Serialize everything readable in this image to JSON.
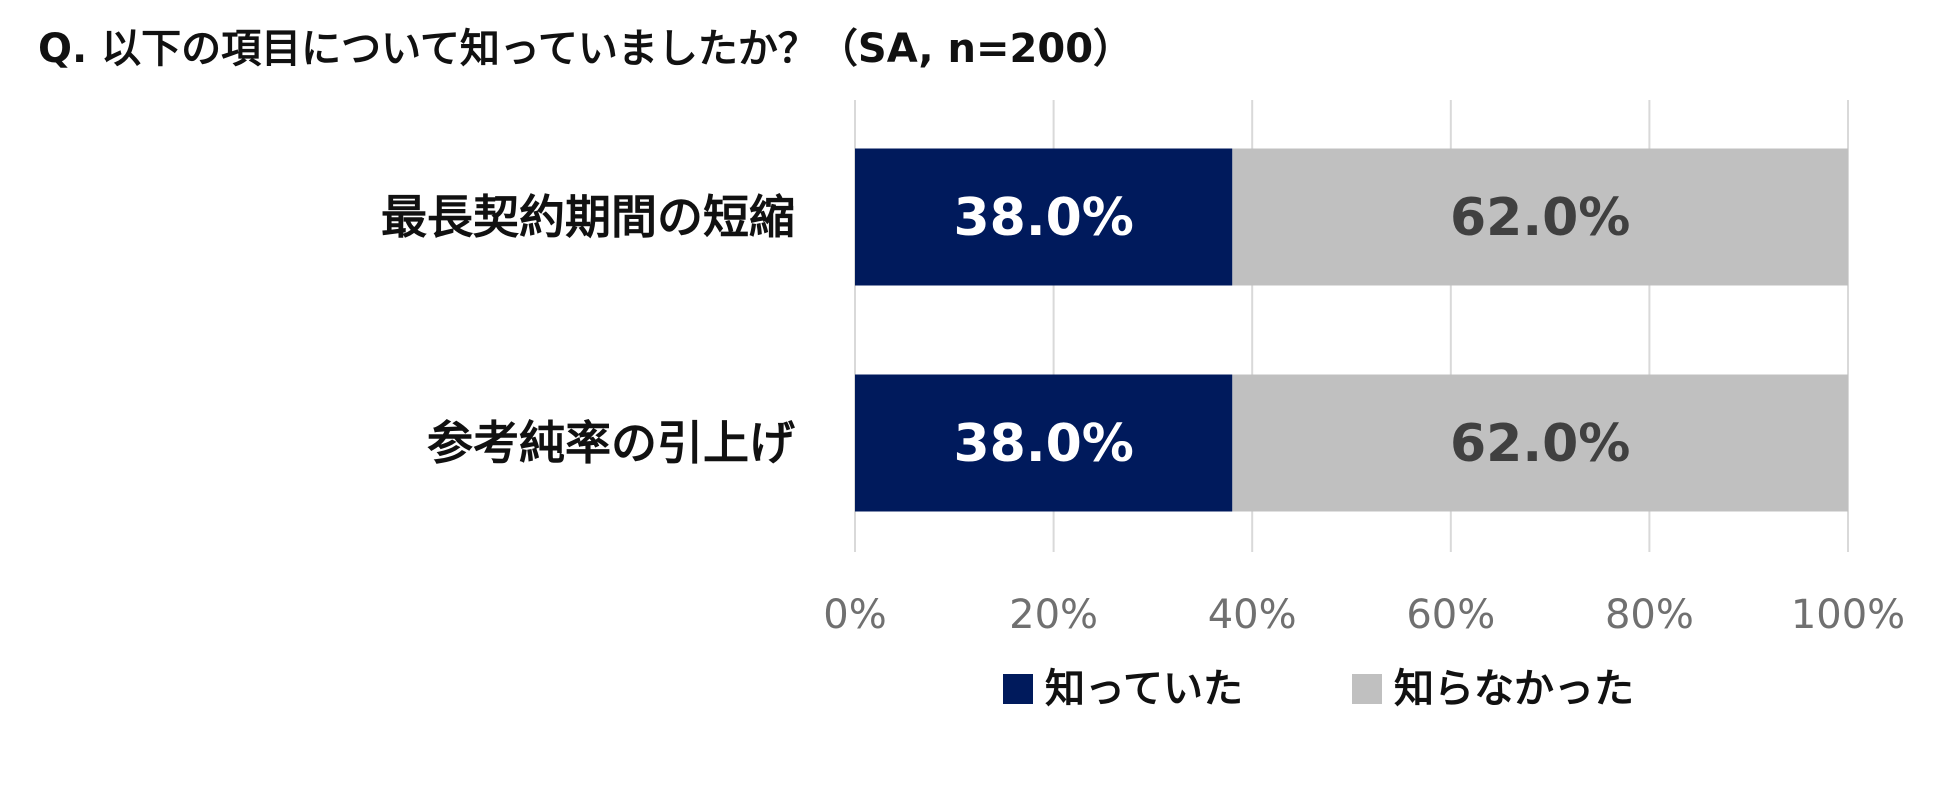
{
  "title": "Q. 以下の項目について知っていましたか？（SA, n=200）",
  "chart_data": {
    "type": "bar",
    "orientation": "horizontal",
    "stacked": true,
    "categories": [
      "最長契約期間の短縮",
      "参考純率の引上げ"
    ],
    "series": [
      {
        "name": "知っていた",
        "values": [
          38.0,
          38.0
        ],
        "labels": [
          "38.0%",
          "38.0%"
        ],
        "color": "#001a5c",
        "label_color": "#ffffff"
      },
      {
        "name": "知らなかった",
        "values": [
          62.0,
          62.0
        ],
        "labels": [
          "62.0%",
          "62.0%"
        ],
        "color": "#c0c0c0",
        "label_color": "#404040"
      }
    ],
    "xlim": [
      0,
      100
    ],
    "x_ticks": [
      0,
      20,
      40,
      60,
      80,
      100
    ],
    "x_tick_labels": [
      "0%",
      "20%",
      "40%",
      "60%",
      "80%",
      "100%"
    ],
    "grid": true,
    "gridline_color": "#d9d9d9",
    "legend_position": "bottom"
  }
}
